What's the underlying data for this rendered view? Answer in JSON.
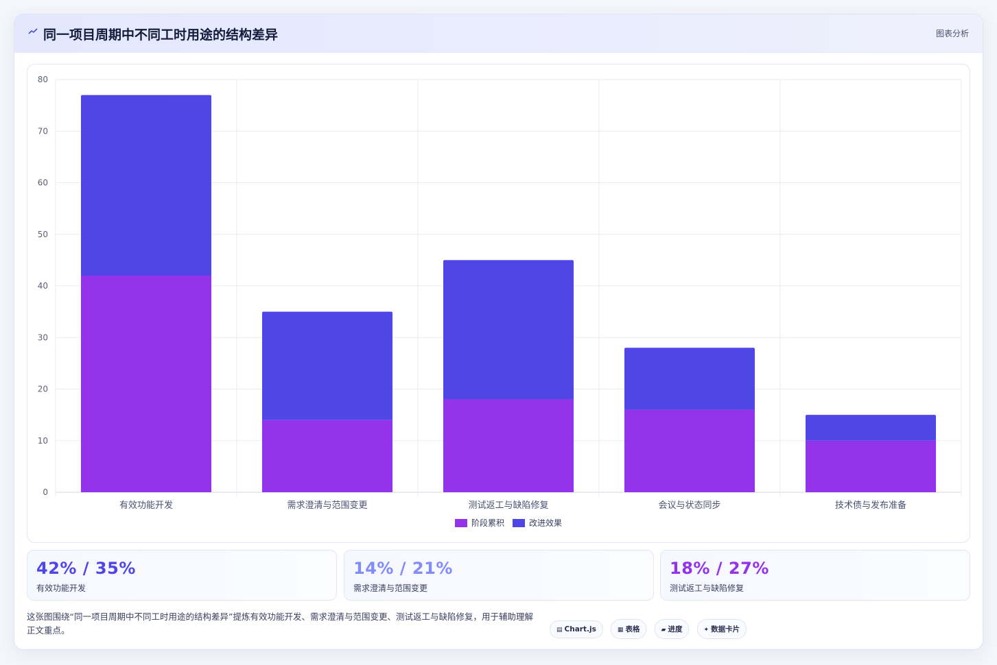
{
  "header": {
    "title": "同一项目周期中不同工时用途的结构差异",
    "right_label": "图表分析"
  },
  "chart_data": {
    "type": "bar",
    "stacked": true,
    "categories": [
      "有效功能开发",
      "需求澄清与范围变更",
      "测试返工与缺陷修复",
      "会议与状态同步",
      "技术债与发布准备"
    ],
    "series": [
      {
        "name": "阶段累积",
        "values": [
          42,
          14,
          18,
          16,
          10
        ],
        "color": "#9333ea"
      },
      {
        "name": "改进效果",
        "values": [
          35,
          21,
          27,
          12,
          5
        ],
        "color": "#4f46e5"
      }
    ],
    "ylim": [
      0,
      80
    ],
    "yticks": [
      0,
      10,
      20,
      30,
      40,
      50,
      60,
      70,
      80
    ],
    "grid": true,
    "legend_position": "bottom"
  },
  "stats": [
    {
      "value": "42% / 35%",
      "label": "有效功能开发",
      "color": "#4f46e5"
    },
    {
      "value": "14% / 21%",
      "label": "需求澄清与范围变更",
      "color": "#818cf8"
    },
    {
      "value": "18% / 27%",
      "label": "测试返工与缺陷修复",
      "color": "#9333ea"
    }
  ],
  "description": "这张图围绕“同一项目周期中不同工时用途的结构差异”提炼有效功能开发、需求澄清与范围变更、测试返工与缺陷修复，用于辅助理解正文重点。",
  "chips": [
    {
      "icon": "▤",
      "label": "Chart.js"
    },
    {
      "icon": "▦",
      "label": "表格"
    },
    {
      "icon": "▰",
      "label": "进度"
    },
    {
      "icon": "✦",
      "label": "数据卡片"
    }
  ]
}
